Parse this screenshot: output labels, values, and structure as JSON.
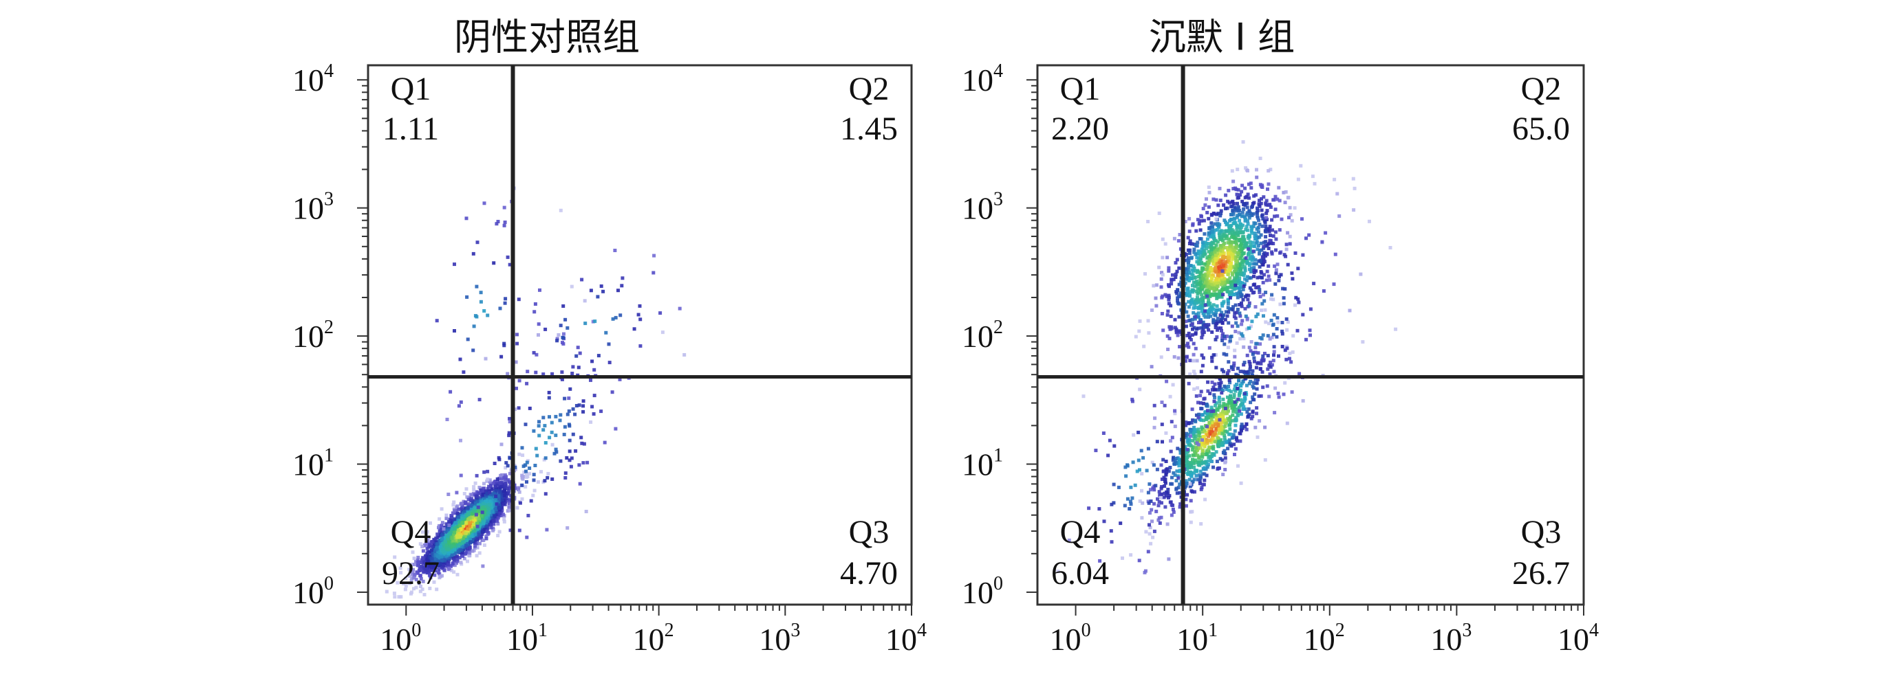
{
  "chart_data": [
    {
      "type": "scatter",
      "subtype": "flow-cytometry-density-plot",
      "title": "阴性对照组",
      "xlabel": "",
      "ylabel": "",
      "xscale": "log",
      "yscale": "log",
      "xlim": [
        0.5,
        10000
      ],
      "ylim": [
        0.8,
        13000
      ],
      "x_ticks": [
        "10",
        "10",
        "10",
        "10",
        "10"
      ],
      "x_tick_exponents": [
        "0",
        "1",
        "2",
        "3",
        "4"
      ],
      "y_ticks": [
        "10",
        "10",
        "10",
        "10",
        "10"
      ],
      "y_tick_exponents": [
        "0",
        "1",
        "2",
        "3",
        "4"
      ],
      "gate": {
        "x": 7.0,
        "y": 48.0
      },
      "quadrants": [
        {
          "name": "Q1",
          "value": "1.11",
          "corner": "top-left"
        },
        {
          "name": "Q2",
          "value": "1.45",
          "corner": "top-right"
        },
        {
          "name": "Q3",
          "value": "4.70",
          "corner": "bottom-right"
        },
        {
          "name": "Q4",
          "value": "92.7",
          "corner": "bottom-left"
        }
      ],
      "populations": [
        {
          "center": [
            3.0,
            3.2
          ],
          "spread": [
            0.18,
            0.18
          ],
          "corr": 0.85,
          "fraction": 0.9
        },
        {
          "center": [
            12.0,
            15.0
          ],
          "spread": [
            0.35,
            0.45
          ],
          "corr": 0.6,
          "fraction": 0.06
        },
        {
          "center": [
            4.0,
            150.0
          ],
          "spread": [
            0.25,
            0.45
          ],
          "corr": 0.0,
          "fraction": 0.02
        },
        {
          "center": [
            30.0,
            120.0
          ],
          "spread": [
            0.35,
            0.3
          ],
          "corr": 0.3,
          "fraction": 0.02
        }
      ],
      "grid": false,
      "legend": "none"
    },
    {
      "type": "scatter",
      "subtype": "flow-cytometry-density-plot",
      "title": "沉默 I 组",
      "xlabel": "",
      "ylabel": "",
      "xscale": "log",
      "yscale": "log",
      "xlim": [
        0.5,
        10000
      ],
      "ylim": [
        0.8,
        13000
      ],
      "x_ticks": [
        "10",
        "10",
        "10",
        "10",
        "10"
      ],
      "x_tick_exponents": [
        "0",
        "1",
        "2",
        "3",
        "4"
      ],
      "y_ticks": [
        "10",
        "10",
        "10",
        "10",
        "10"
      ],
      "y_tick_exponents": [
        "0",
        "1",
        "2",
        "3",
        "4"
      ],
      "gate": {
        "x": 7.0,
        "y": 48.0
      },
      "quadrants": [
        {
          "name": "Q1",
          "value": "2.20",
          "corner": "top-left"
        },
        {
          "name": "Q2",
          "value": "65.0",
          "corner": "top-right"
        },
        {
          "name": "Q3",
          "value": "26.7",
          "corner": "bottom-right"
        },
        {
          "name": "Q4",
          "value": "6.04",
          "corner": "bottom-left"
        }
      ],
      "populations": [
        {
          "center": [
            14.0,
            350.0
          ],
          "spread": [
            0.22,
            0.3
          ],
          "corr": 0.5,
          "fraction": 0.55
        },
        {
          "center": [
            12.0,
            18.0
          ],
          "spread": [
            0.22,
            0.3
          ],
          "corr": 0.8,
          "fraction": 0.33
        },
        {
          "center": [
            25.0,
            120.0
          ],
          "spread": [
            0.35,
            0.45
          ],
          "corr": 0.5,
          "fraction": 0.09
        },
        {
          "center": [
            3.0,
            8.0
          ],
          "spread": [
            0.25,
            0.4
          ],
          "corr": 0.3,
          "fraction": 0.03
        }
      ],
      "grid": false,
      "legend": "none"
    }
  ]
}
